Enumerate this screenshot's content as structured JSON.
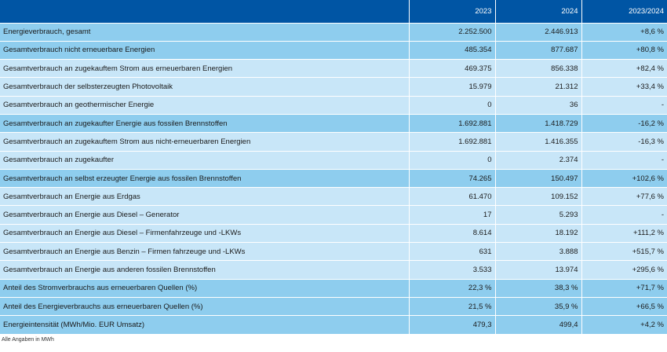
{
  "table": {
    "columns": [
      "",
      "2023",
      "2024",
      "2023/2024"
    ],
    "rows": [
      {
        "label": "Energieverbrauch, gesamt",
        "v2023": "2.252.500",
        "v2024": "2.446.913",
        "delta": "+8,6 %",
        "shade": "dark"
      },
      {
        "label": "Gesamtverbrauch nicht erneuerbare Energien",
        "v2023": "485.354",
        "v2024": "877.687",
        "delta": "+80,8 %",
        "shade": "dark"
      },
      {
        "label": "Gesamtverbrauch an zugekauftem Strom aus erneuerbaren Energien",
        "v2023": "469.375",
        "v2024": "856.338",
        "delta": "+82,4 %",
        "shade": "light"
      },
      {
        "label": "Gesamtverbrauch der selbsterzeugten Photovoltaik",
        "v2023": "15.979",
        "v2024": "21.312",
        "delta": "+33,4 %",
        "shade": "light"
      },
      {
        "label": "Gesamtverbrauch an geothermischer Energie",
        "v2023": "0",
        "v2024": "36",
        "delta": "-",
        "shade": "light"
      },
      {
        "label": "Gesamtverbrauch an zugekaufter Energie aus fossilen Brennstoffen",
        "v2023": "1.692.881",
        "v2024": "1.418.729",
        "delta": "-16,2 %",
        "shade": "dark"
      },
      {
        "label": "Gesamtverbrauch an zugekauftem Strom aus nicht-erneuerbaren Energien",
        "v2023": "1.692.881",
        "v2024": "1.416.355",
        "delta": "-16,3 %",
        "shade": "light"
      },
      {
        "label": " Gesamtverbrauch an zugekaufter",
        "v2023": "0",
        "v2024": "2.374",
        "delta": "-",
        "shade": "light"
      },
      {
        "label": "Gesamtverbrauch an selbst erzeugter Energie aus fossilen Brennstoffen",
        "v2023": "74.265",
        "v2024": "150.497",
        "delta": "+102,6 %",
        "shade": "dark"
      },
      {
        "label": "Gesamtverbrauch an Energie aus Erdgas",
        "v2023": "61.470",
        "v2024": "109.152",
        "delta": "+77,6 %",
        "shade": "light"
      },
      {
        "label": "Gesamtverbrauch an Energie aus Diesel – Generator",
        "v2023": "17",
        "v2024": "5.293",
        "delta": "-",
        "shade": "light"
      },
      {
        "label": "Gesamtverbrauch an Energie aus Diesel – Firmenfahrzeuge und -LKWs",
        "v2023": "8.614",
        "v2024": "18.192",
        "delta": "+111,2 %",
        "shade": "light"
      },
      {
        "label": "Gesamtverbrauch an Energie aus Benzin – Firmen fahrzeuge und -LKWs",
        "v2023": "631",
        "v2024": "3.888",
        "delta": "+515,7 %",
        "shade": "light"
      },
      {
        "label": "Gesamtverbrauch an Energie aus anderen fossilen Brennstoffen",
        "v2023": "3.533",
        "v2024": "13.974",
        "delta": "+295,6 %",
        "shade": "light"
      },
      {
        "label": "Anteil des Stromverbrauchs aus erneuerbaren Quellen (%)",
        "v2023": "22,3 %",
        "v2024": "38,3 %",
        "delta": "+71,7 %",
        "shade": "dark"
      },
      {
        "label": "Anteil des Energieverbrauchs aus erneuerbaren Quellen (%)",
        "v2023": "21,5 %",
        "v2024": "35,9 %",
        "delta": "+66,5 %",
        "shade": "dark"
      },
      {
        "label": "Energieintensität (MWh/Mio. EUR Umsatz)",
        "v2023": "479,3",
        "v2024": "499,4",
        "delta": "+4,2 %",
        "shade": "dark"
      }
    ]
  },
  "footnote": "Alle Angaben in MWh",
  "colors": {
    "header": "#0055a4",
    "row_dark": "#8ecdee",
    "row_light": "#c8e6f8"
  }
}
